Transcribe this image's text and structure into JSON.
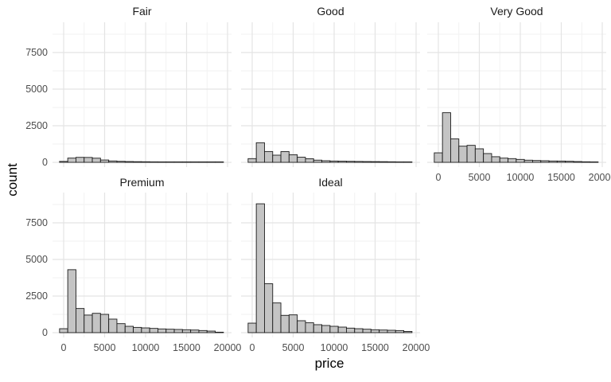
{
  "chart_data": {
    "type": "bar",
    "subtype": "faceted-histogram",
    "title": "",
    "xlabel": "price",
    "ylabel": "count",
    "bin_width": 1000,
    "bin_centers": [
      0,
      1000,
      2000,
      3000,
      4000,
      5000,
      6000,
      7000,
      8000,
      9000,
      10000,
      11000,
      12000,
      13000,
      14000,
      15000,
      16000,
      17000,
      18000,
      19000
    ],
    "x_ticks": [
      0,
      5000,
      10000,
      15000,
      20000
    ],
    "x_tick_labels": [
      "0",
      "5000",
      "10000",
      "15000",
      "20000"
    ],
    "y_ticks": [
      0,
      2500,
      5000,
      7500
    ],
    "y_tick_labels": [
      "0",
      "2500",
      "5000",
      "7500"
    ],
    "xlim": [
      -750,
      20250
    ],
    "ylim": [
      0,
      9600
    ],
    "grid": "major and minor gridlines, no axis lines, no panel border",
    "legend": "none",
    "facets": [
      {
        "label": "Fair",
        "counts": [
          65,
          290,
          340,
          335,
          285,
          160,
          95,
          70,
          55,
          45,
          40,
          35,
          30,
          25,
          22,
          20,
          18,
          15,
          10,
          4
        ]
      },
      {
        "label": "Good",
        "counts": [
          255,
          1340,
          740,
          490,
          735,
          520,
          350,
          245,
          150,
          110,
          90,
          80,
          70,
          62,
          55,
          50,
          45,
          38,
          28,
          8
        ]
      },
      {
        "label": "Very Good",
        "counts": [
          650,
          3390,
          1600,
          1105,
          1160,
          925,
          600,
          385,
          290,
          255,
          200,
          148,
          125,
          110,
          92,
          88,
          74,
          55,
          38,
          15
        ]
      },
      {
        "label": "Premium",
        "counts": [
          270,
          4300,
          1650,
          1200,
          1320,
          1250,
          925,
          615,
          435,
          360,
          325,
          290,
          255,
          235,
          218,
          200,
          180,
          145,
          108,
          30
        ]
      },
      {
        "label": "Ideal",
        "counts": [
          650,
          8800,
          3340,
          2030,
          1180,
          1215,
          815,
          675,
          545,
          490,
          435,
          380,
          310,
          270,
          235,
          200,
          180,
          163,
          143,
          85
        ]
      }
    ]
  },
  "axis": {
    "x_title": "price",
    "y_title": "count"
  },
  "style": {
    "background": "#ffffff",
    "bar_fill": "#c4c4c4",
    "bar_stroke": "#1b1b1b",
    "grid_major": "#e4e4e4",
    "grid_minor": "#f2f2f2",
    "tick_label_color": "#4d4d4d",
    "facet_title_color": "#1a1a1a",
    "axis_title_color": "#000000"
  }
}
